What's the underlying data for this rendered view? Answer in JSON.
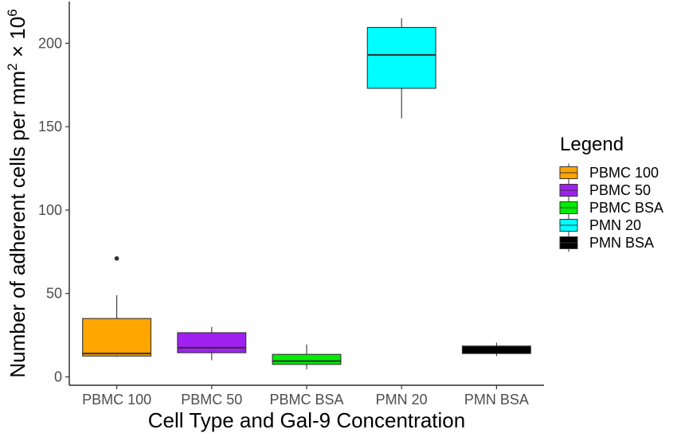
{
  "chart_data": {
    "type": "box",
    "xlabel": "Cell Type and Gal-9 Concentration",
    "ylabel_main": "Number of adherent cells per mm",
    "ylabel_sup1": "2",
    "ylabel_times": " × 10",
    "ylabel_sup2": "6",
    "ylim": [
      -5,
      225
    ],
    "yticks": [
      0,
      50,
      100,
      150,
      200
    ],
    "grid": false,
    "legend": {
      "title": "Legend",
      "position": "right"
    },
    "categories": [
      "PBMC 100",
      "PBMC 50",
      "PBMC BSA",
      "PMN 20",
      "PMN BSA"
    ],
    "boxes": [
      {
        "category": "PBMC 100",
        "color": "#FFA500",
        "min": 12,
        "q1": 12.5,
        "median": 14,
        "q3": 35,
        "max": 49,
        "outliers": [
          71
        ]
      },
      {
        "category": "PBMC 50",
        "color": "#A020F0",
        "min": 10,
        "q1": 14.5,
        "median": 17.5,
        "q3": 26.5,
        "max": 30,
        "outliers": []
      },
      {
        "category": "PBMC BSA",
        "color": "#00EE00",
        "min": 4.5,
        "q1": 7.5,
        "median": 9.5,
        "q3": 13.5,
        "max": 19.5,
        "outliers": []
      },
      {
        "category": "PMN 20",
        "color": "#00FFFF",
        "min": 155,
        "q1": 173,
        "median": 193,
        "q3": 209.5,
        "max": 215,
        "outliers": []
      },
      {
        "category": "PMN BSA",
        "color": "#000000",
        "min": 12.5,
        "q1": 14,
        "median": 16,
        "q3": 18.5,
        "max": 20.5,
        "outliers": []
      }
    ]
  }
}
